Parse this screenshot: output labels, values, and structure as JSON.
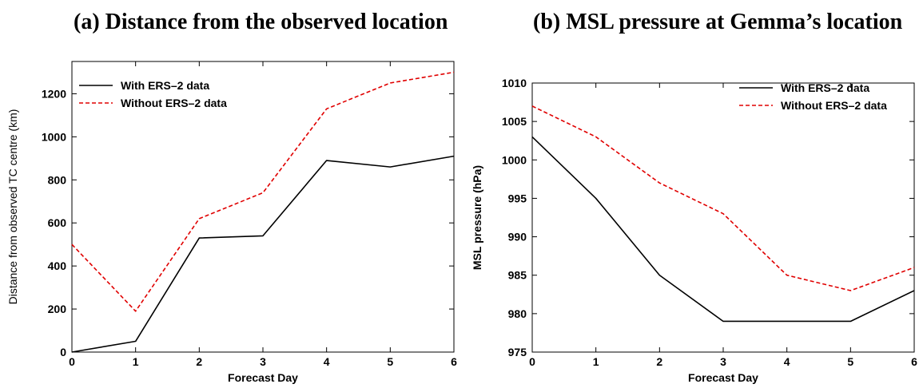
{
  "chart_data": [
    {
      "type": "line",
      "title": "(a) Distance from the observed location",
      "xlabel": "Forecast Day",
      "ylabel": "Distance from observed TC centre (km)",
      "xlim": [
        0,
        6
      ],
      "ylim": [
        0,
        1350
      ],
      "xticks": [
        0,
        1,
        2,
        3,
        4,
        5,
        6
      ],
      "yticks": [
        0,
        200,
        400,
        600,
        800,
        1000,
        1200
      ],
      "grid": false,
      "legend_position": "top-left",
      "x": [
        0,
        1,
        2,
        3,
        4,
        5,
        6
      ],
      "series": [
        {
          "name": "With ERS–2 data",
          "color": "#000000",
          "dash": "solid",
          "values": [
            0,
            50,
            530,
            540,
            890,
            860,
            910
          ]
        },
        {
          "name": "Without ERS–2 data",
          "color": "#e00000",
          "dash": "dashed",
          "values": [
            500,
            190,
            620,
            740,
            1130,
            1250,
            1300
          ]
        }
      ]
    },
    {
      "type": "line",
      "title": "(b) MSL pressure at Gemma’s location",
      "xlabel": "Forecast Day",
      "ylabel": "MSL pressure (hPa)",
      "xlim": [
        0,
        6
      ],
      "ylim": [
        975,
        1010
      ],
      "xticks": [
        0,
        1,
        2,
        3,
        4,
        5,
        6
      ],
      "yticks": [
        975,
        980,
        985,
        990,
        995,
        1000,
        1005,
        1010
      ],
      "grid": false,
      "legend_position": "top-right",
      "x": [
        0,
        1,
        2,
        3,
        4,
        5,
        6
      ],
      "series": [
        {
          "name": "With ERS–2 data",
          "color": "#000000",
          "dash": "solid",
          "values": [
            1003,
            995,
            985,
            979,
            979,
            979,
            983
          ]
        },
        {
          "name": "Without ERS–2 data",
          "color": "#e00000",
          "dash": "dashed",
          "values": [
            1007,
            1003,
            997,
            993,
            985,
            983,
            986
          ]
        }
      ]
    }
  ]
}
